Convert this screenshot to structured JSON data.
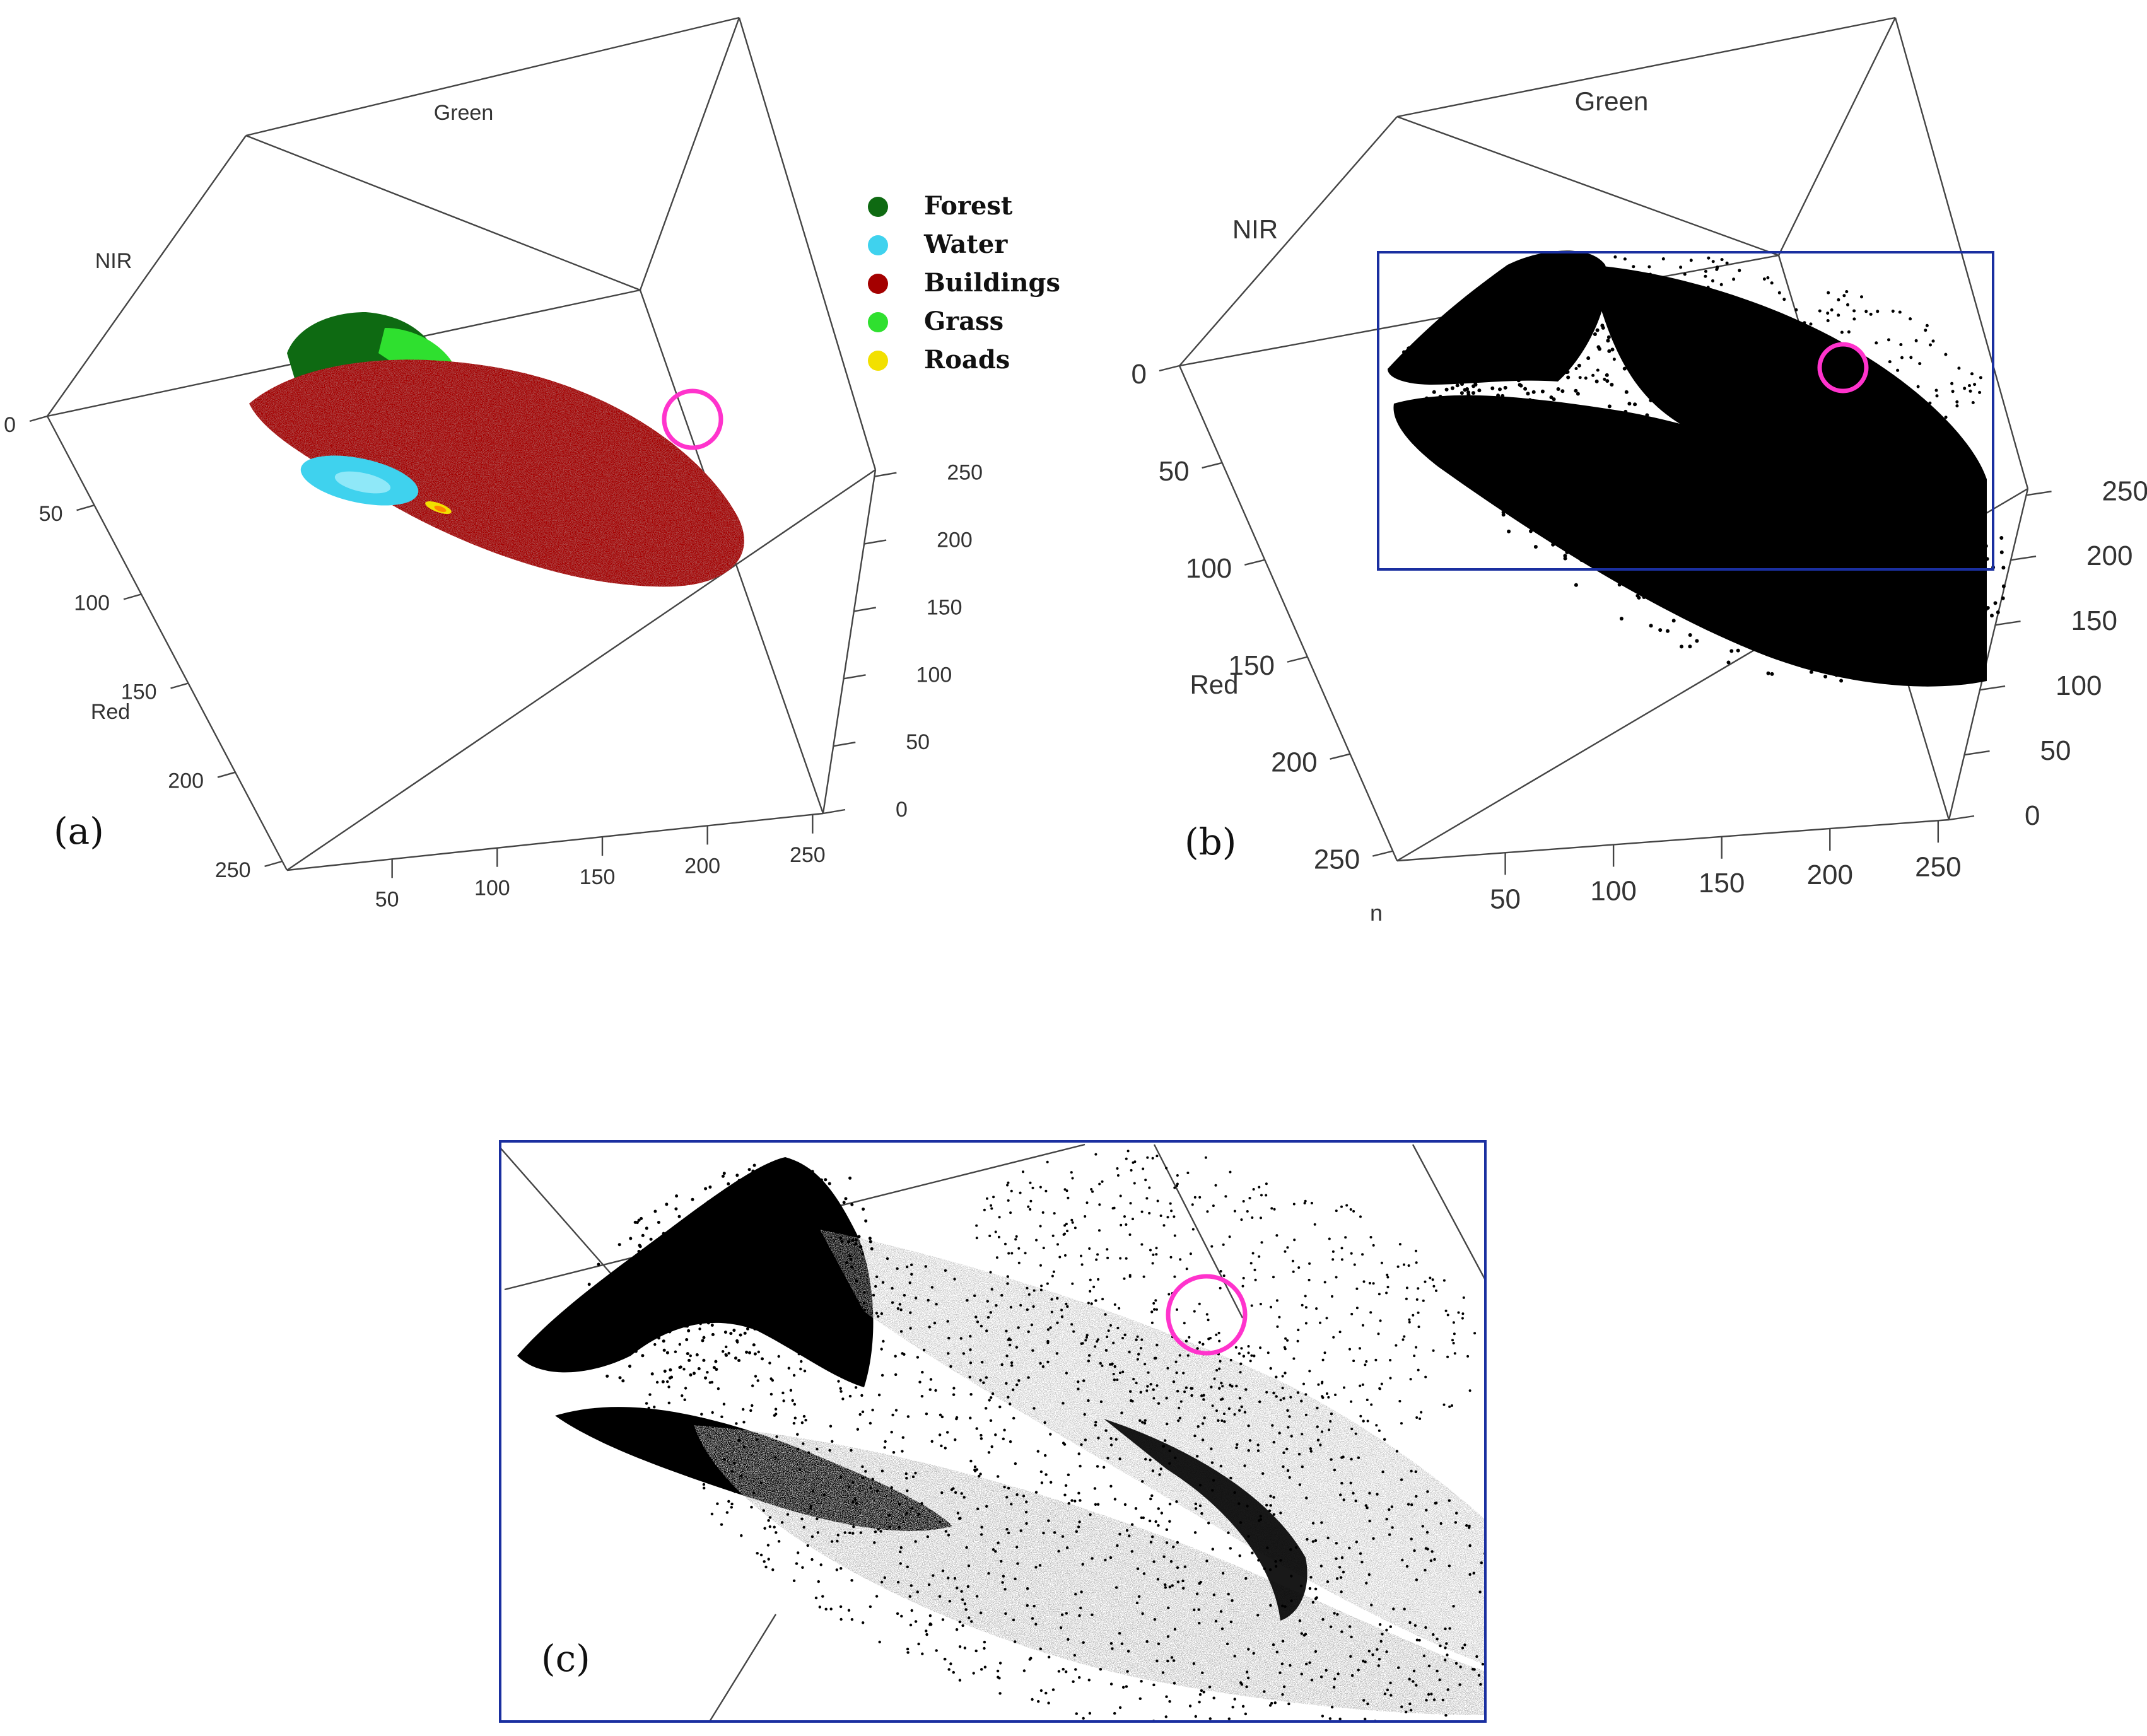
{
  "panels": [
    {
      "id": "a",
      "label": "(a)"
    },
    {
      "id": "b",
      "label": "(b)"
    },
    {
      "id": "c",
      "label": "(c)"
    }
  ],
  "colors": {
    "forest": "#0e6a12",
    "water": "#3fd2ee",
    "buildings": "#a40000",
    "grass": "#2fe02f",
    "roads": "#f2e000",
    "highlight_circle": "#ff33cc",
    "zoom_box": "#1a2fa0",
    "points": "#000000"
  },
  "chart_data": [
    {
      "panel": "a",
      "type": "scatter",
      "projection": "3d",
      "axes": {
        "x": {
          "label": "",
          "ticks": [
            50,
            100,
            150,
            200,
            250
          ],
          "range": [
            0,
            255
          ]
        },
        "y": {
          "label": "Red",
          "ticks": [
            0,
            50,
            100,
            150,
            200,
            250
          ],
          "range": [
            0,
            255
          ]
        },
        "z": {
          "label": "NIR",
          "ticks": [
            0,
            50,
            100,
            150,
            200,
            250
          ],
          "range": [
            0,
            255
          ]
        },
        "top_label": "Green"
      },
      "legend": {
        "placement": "right",
        "entries": [
          {
            "name": "Forest",
            "color": "#0e6a12"
          },
          {
            "name": "Water",
            "color": "#3fd2ee"
          },
          {
            "name": "Buildings",
            "color": "#a40000"
          },
          {
            "name": "Grass",
            "color": "#2fe02f"
          },
          {
            "name": "Roads",
            "color": "#f2e000"
          }
        ]
      },
      "series": [
        {
          "name": "Forest"
        },
        {
          "name": "Water"
        },
        {
          "name": "Buildings"
        },
        {
          "name": "Grass"
        },
        {
          "name": "Roads"
        }
      ],
      "annotation": "highlight circle"
    },
    {
      "panel": "b",
      "type": "scatter",
      "projection": "3d",
      "axes": {
        "x": {
          "label": "",
          "ticks": [
            50,
            100,
            150,
            200,
            250
          ],
          "range": [
            0,
            255
          ]
        },
        "y": {
          "label": "Red",
          "ticks": [
            0,
            50,
            100,
            150,
            200,
            250
          ],
          "range": [
            0,
            255
          ]
        },
        "z": {
          "label": "NIR",
          "ticks": [
            0,
            50,
            100,
            150,
            200,
            250
          ],
          "range": [
            0,
            255
          ]
        },
        "top_label": "Green"
      },
      "stray_label": "n",
      "annotation": "zoom rectangle and highlight circle"
    },
    {
      "panel": "c",
      "type": "scatter",
      "projection": "3d",
      "note": "magnified view of the rectangle in (b)"
    }
  ]
}
